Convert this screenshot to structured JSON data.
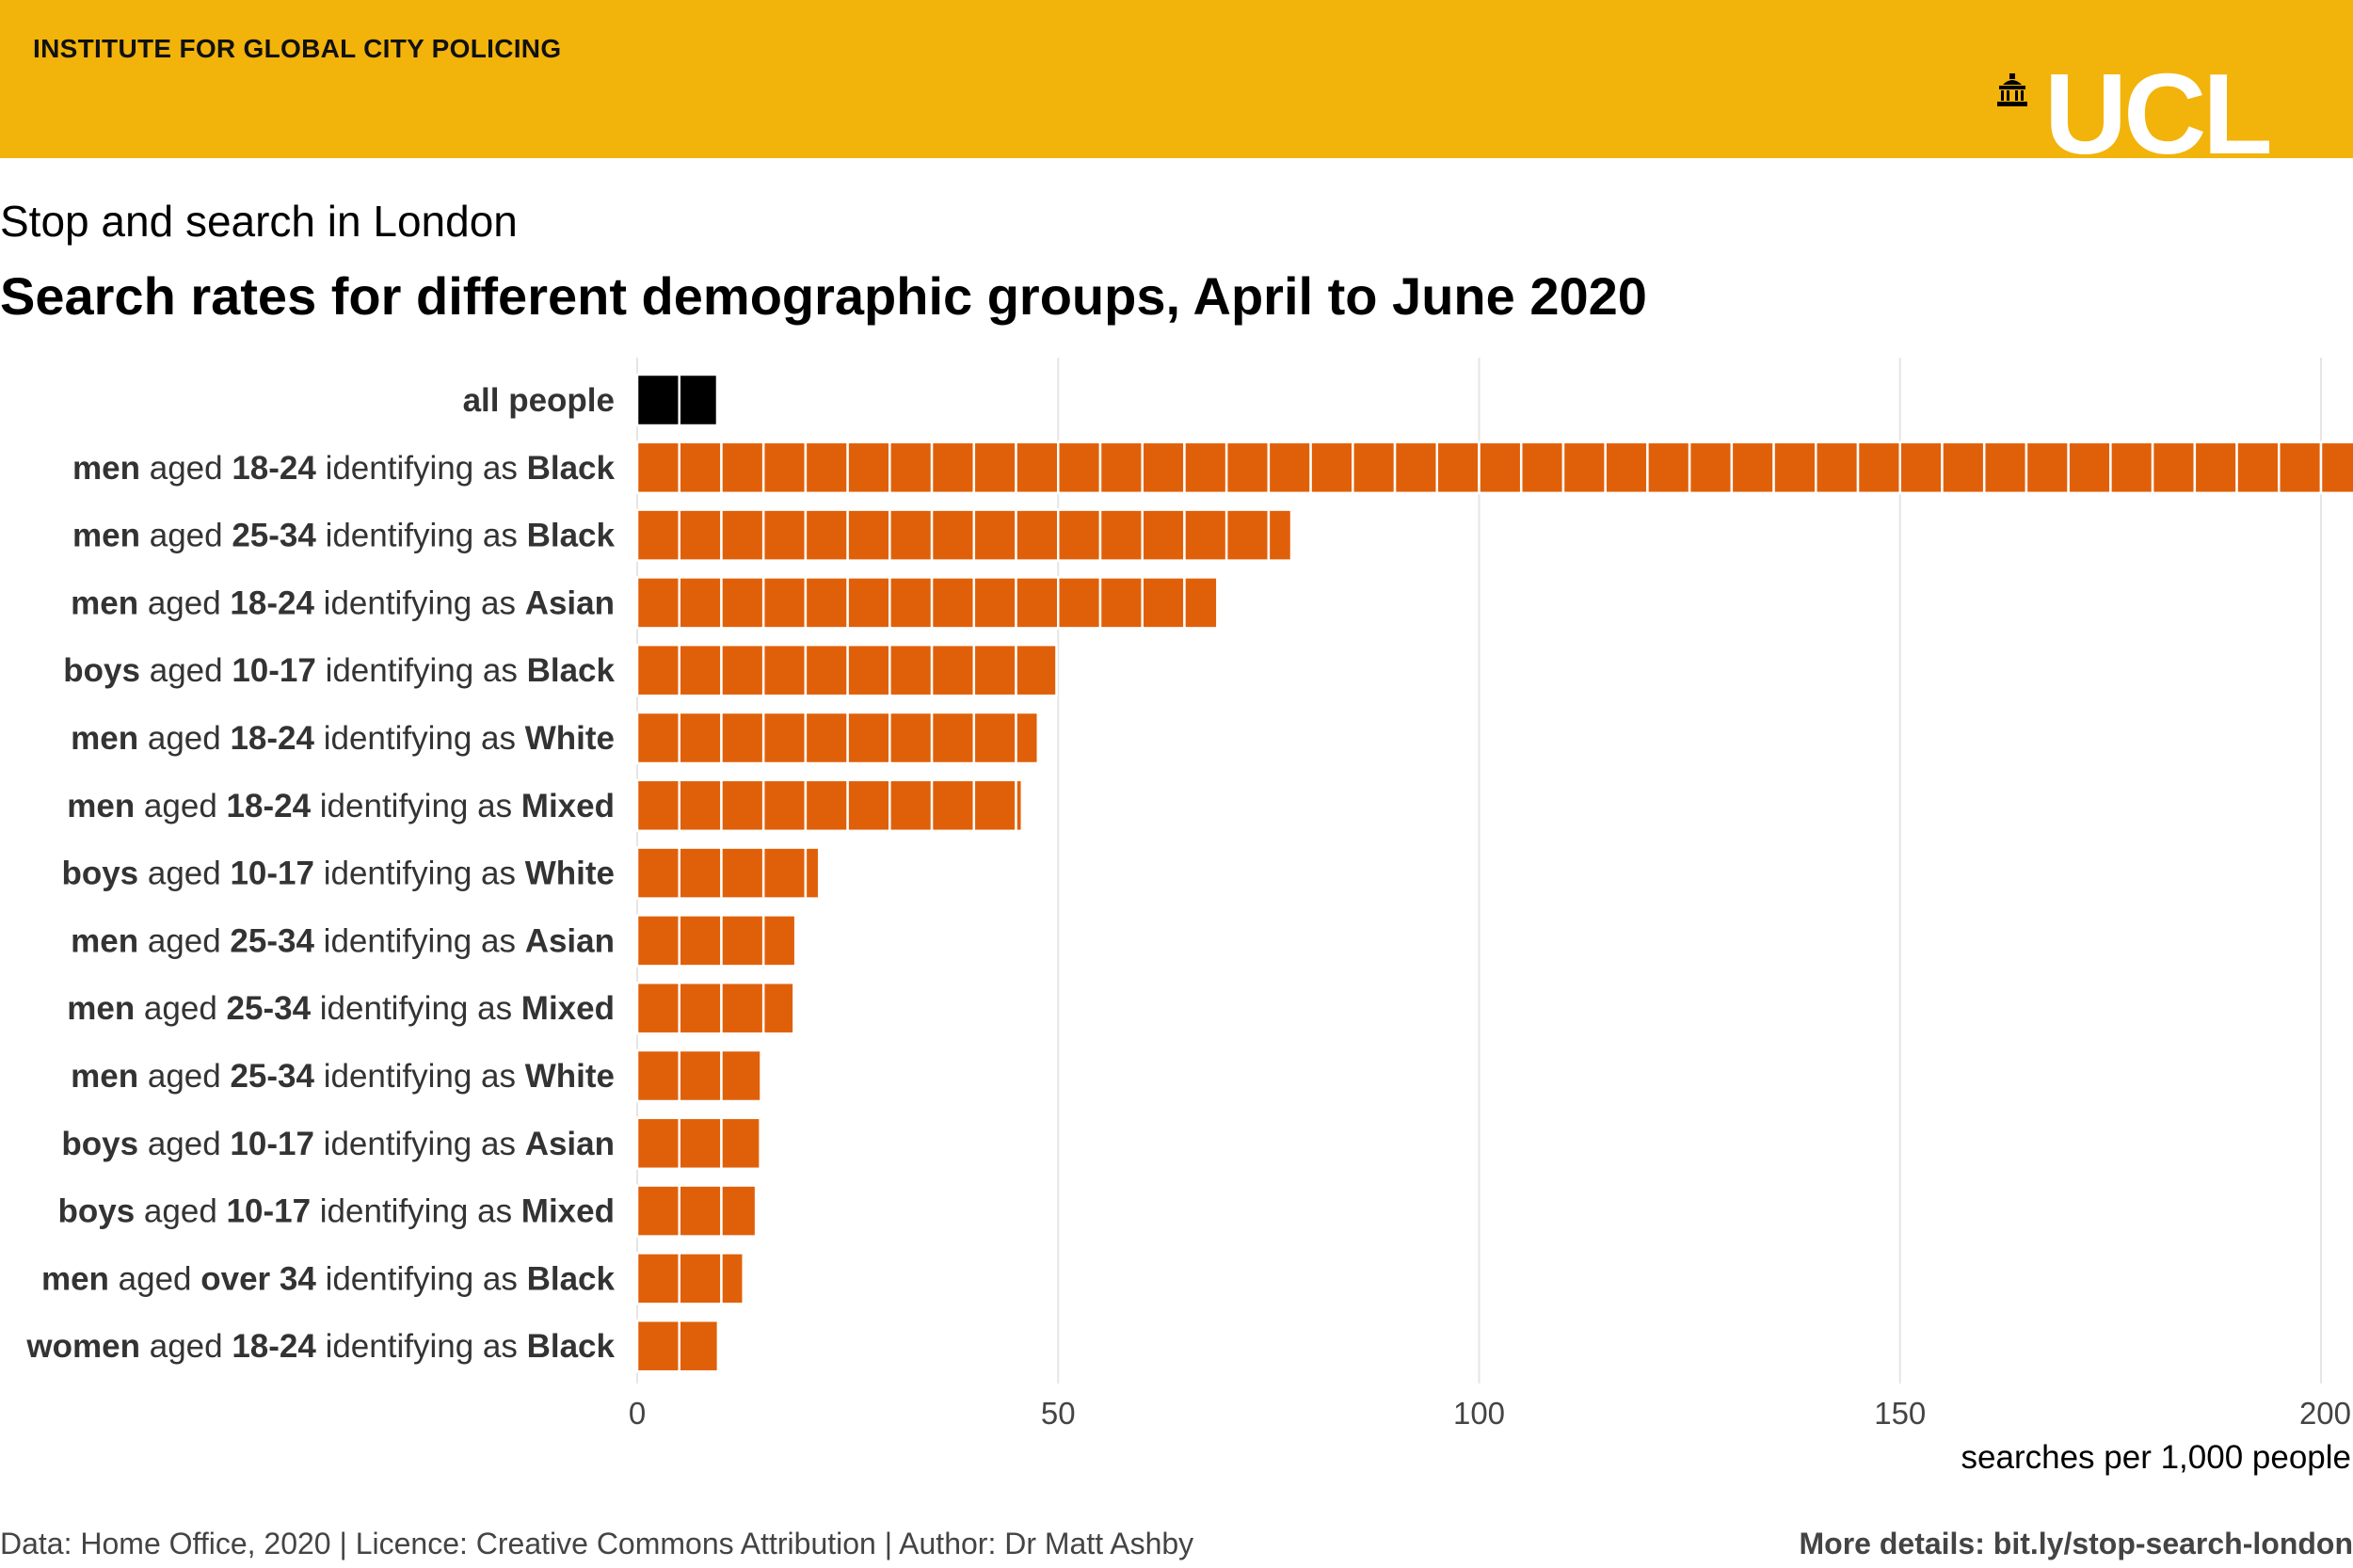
{
  "header": {
    "institute": "INSTITUTE FOR GLOBAL CITY POLICING",
    "logo_text": "UCL",
    "logo_icon": "building-icon"
  },
  "subtitle": "Stop and search in London",
  "title": "Search rates for different demographic groups, April to June 2020",
  "chart_data": {
    "type": "bar",
    "orientation": "horizontal",
    "unit_per_block": 5,
    "xlabel": "searches per 1,000 people",
    "xlim": [
      0,
      200
    ],
    "xticks": [
      0,
      50,
      100,
      150,
      200
    ],
    "grid": "vertical",
    "colors": {
      "highlight": "#000000",
      "default": "#e0600a"
    },
    "categories": [
      {
        "parts": [
          [
            "all people",
            true
          ]
        ],
        "value": 9.5,
        "highlight": true
      },
      {
        "parts": [
          [
            "men",
            true
          ],
          [
            " aged ",
            false
          ],
          [
            "18-24",
            true
          ],
          [
            " identifying as ",
            false
          ],
          [
            "Black",
            true
          ]
        ],
        "value": 204
      },
      {
        "parts": [
          [
            "men",
            true
          ],
          [
            " aged ",
            false
          ],
          [
            "25-34",
            true
          ],
          [
            " identifying as ",
            false
          ],
          [
            "Black",
            true
          ]
        ],
        "value": 77.7
      },
      {
        "parts": [
          [
            "men",
            true
          ],
          [
            " aged ",
            false
          ],
          [
            "18-24",
            true
          ],
          [
            " identifying as ",
            false
          ],
          [
            "Asian",
            true
          ]
        ],
        "value": 68.9
      },
      {
        "parts": [
          [
            "boys",
            true
          ],
          [
            " aged ",
            false
          ],
          [
            "10-17",
            true
          ],
          [
            " identifying as ",
            false
          ],
          [
            "Black",
            true
          ]
        ],
        "value": 49.8
      },
      {
        "parts": [
          [
            "men",
            true
          ],
          [
            " aged ",
            false
          ],
          [
            "18-24",
            true
          ],
          [
            " identifying as ",
            false
          ],
          [
            "White",
            true
          ]
        ],
        "value": 47.6
      },
      {
        "parts": [
          [
            "men",
            true
          ],
          [
            " aged ",
            false
          ],
          [
            "18-24",
            true
          ],
          [
            " identifying as ",
            false
          ],
          [
            "Mixed",
            true
          ]
        ],
        "value": 45.7
      },
      {
        "parts": [
          [
            "boys",
            true
          ],
          [
            " aged ",
            false
          ],
          [
            "10-17",
            true
          ],
          [
            " identifying as ",
            false
          ],
          [
            "White",
            true
          ]
        ],
        "value": 21.6
      },
      {
        "parts": [
          [
            "men",
            true
          ],
          [
            " aged ",
            false
          ],
          [
            "25-34",
            true
          ],
          [
            " identifying as ",
            false
          ],
          [
            "Asian",
            true
          ]
        ],
        "value": 18.8
      },
      {
        "parts": [
          [
            "men",
            true
          ],
          [
            " aged ",
            false
          ],
          [
            "25-34",
            true
          ],
          [
            " identifying as ",
            false
          ],
          [
            "Mixed",
            true
          ]
        ],
        "value": 18.6
      },
      {
        "parts": [
          [
            "men",
            true
          ],
          [
            " aged ",
            false
          ],
          [
            "25-34",
            true
          ],
          [
            " identifying as ",
            false
          ],
          [
            "White",
            true
          ]
        ],
        "value": 14.7
      },
      {
        "parts": [
          [
            "boys",
            true
          ],
          [
            " aged ",
            false
          ],
          [
            "10-17",
            true
          ],
          [
            " identifying as ",
            false
          ],
          [
            "Asian",
            true
          ]
        ],
        "value": 14.6
      },
      {
        "parts": [
          [
            "boys",
            true
          ],
          [
            " aged ",
            false
          ],
          [
            "10-17",
            true
          ],
          [
            " identifying as ",
            false
          ],
          [
            "Mixed",
            true
          ]
        ],
        "value": 14.1
      },
      {
        "parts": [
          [
            "men",
            true
          ],
          [
            " aged ",
            false
          ],
          [
            "over 34",
            true
          ],
          [
            " identifying as ",
            false
          ],
          [
            "Black",
            true
          ]
        ],
        "value": 12.6
      },
      {
        "parts": [
          [
            "women",
            true
          ],
          [
            " aged ",
            false
          ],
          [
            "18-24",
            true
          ],
          [
            " identifying as ",
            false
          ],
          [
            "Black",
            true
          ]
        ],
        "value": 9.6
      }
    ]
  },
  "footer": {
    "left": "Data: Home Office, 2020 | Licence: Creative Commons Attribution | Author: Dr Matt Ashby",
    "right": "More details: bit.ly/stop-search-london"
  }
}
